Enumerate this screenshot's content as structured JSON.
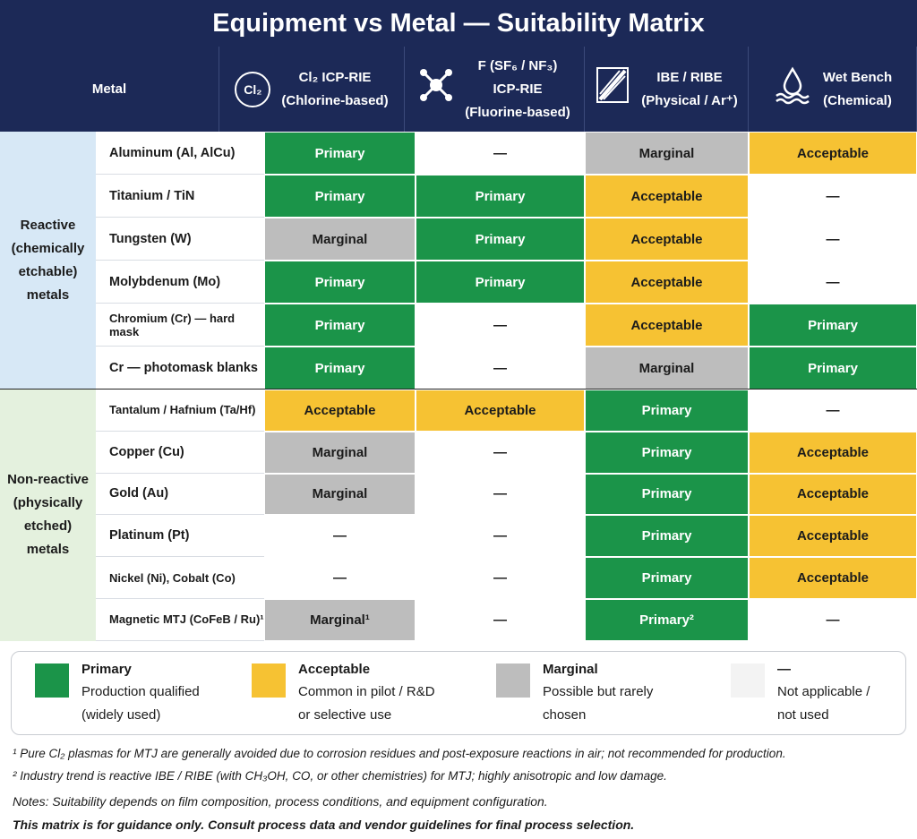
{
  "title": "Equipment vs Metal — Suitability Matrix",
  "table": {
    "header": {
      "metal": "Metal",
      "columns": [
        {
          "icon": "Cl₂",
          "lines": [
            "Cl₂ ICP-RIE",
            "(Chlorine-based)"
          ]
        },
        {
          "lines": [
            "F (SF₆ / NF₃)",
            "ICP-RIE",
            "(Fluorine-based)"
          ]
        },
        {
          "lines": [
            "IBE / RIBE",
            "(Physical / Ar⁺)"
          ]
        },
        {
          "lines": [
            "Wet Bench",
            "(Chemical)"
          ]
        }
      ]
    },
    "groups": [
      {
        "label": [
          "Reactive",
          "(chemically",
          "etchable)",
          "metals"
        ],
        "rows": [
          {
            "metal": "Aluminum (Al, AlCu)",
            "cells": [
              "Primary",
              "—",
              "Marginal",
              "Acceptable"
            ]
          },
          {
            "metal": "Titanium / TiN",
            "cells": [
              "Primary",
              "Primary",
              "Acceptable",
              "—"
            ]
          },
          {
            "metal": "Tungsten (W)",
            "cells": [
              "Marginal",
              "Primary",
              "Acceptable",
              "—"
            ]
          },
          {
            "metal": "Molybdenum (Mo)",
            "cells": [
              "Primary",
              "Primary",
              "Acceptable",
              "—"
            ]
          },
          {
            "metal": "Chromium (Cr) — hard mask",
            "cells": [
              "Primary",
              "—",
              "Acceptable",
              "Primary"
            ]
          },
          {
            "metal": "Cr — photomask blanks",
            "cells": [
              "Primary",
              "—",
              "Marginal",
              "Primary"
            ]
          }
        ]
      },
      {
        "label": [
          "Non-reactive",
          "(physically",
          "etched)",
          "metals"
        ],
        "rows": [
          {
            "metal": "Tantalum / Hafnium (Ta/Hf)",
            "cells": [
              "Acceptable",
              "Acceptable",
              "Primary",
              "—"
            ]
          },
          {
            "metal": "Copper (Cu)",
            "cells": [
              "Marginal",
              "—",
              "Primary",
              "Acceptable"
            ]
          },
          {
            "metal": "Gold (Au)",
            "cells": [
              "Marginal",
              "—",
              "Primary",
              "Acceptable"
            ]
          },
          {
            "metal": "Platinum (Pt)",
            "cells": [
              "—",
              "—",
              "Primary",
              "Acceptable"
            ]
          },
          {
            "metal": "Nickel (Ni), Cobalt (Co)",
            "cells": [
              "—",
              "—",
              "Primary",
              "Acceptable"
            ]
          },
          {
            "metal": "Magnetic MTJ (CoFeB / Ru)¹",
            "cells": [
              "Marginal¹",
              "—",
              "Primary²",
              "—"
            ]
          }
        ]
      }
    ]
  },
  "legend": [
    {
      "name": "Primary",
      "description": [
        "Production qualified",
        "(widely used)"
      ],
      "color": "#1b9449",
      "text_color": "#ffffff"
    },
    {
      "name": "Acceptable",
      "description": [
        "Common in pilot / R&D",
        "or selective use"
      ],
      "color": "#f6c233",
      "text_color": "#1b1b1b"
    },
    {
      "name": "Marginal",
      "description": [
        "Possible but rarely",
        "chosen"
      ],
      "color": "#bdbdbd",
      "text_color": "#1b1b1b"
    },
    {
      "name": "—",
      "description": [
        "Not applicable /",
        "not used"
      ],
      "color": "#f3f3f3",
      "text_color": "#1b1b1b"
    }
  ],
  "footnotes": [
    "¹ Pure Cl₂ plasmas for MTJ are generally avoided due to corrosion residues and post-exposure reactions in air; not recommended for production.",
    "² Industry trend is reactive IBE / RIBE (with CH₃OH, CO, or other chemistries) for MTJ; highly anisotropic and low damage."
  ],
  "notes": [
    "Notes: Suitability depends on film composition, process conditions, and equipment configuration.",
    "This matrix is for guidance only. Consult process data and vendor guidelines for final process selection."
  ]
}
